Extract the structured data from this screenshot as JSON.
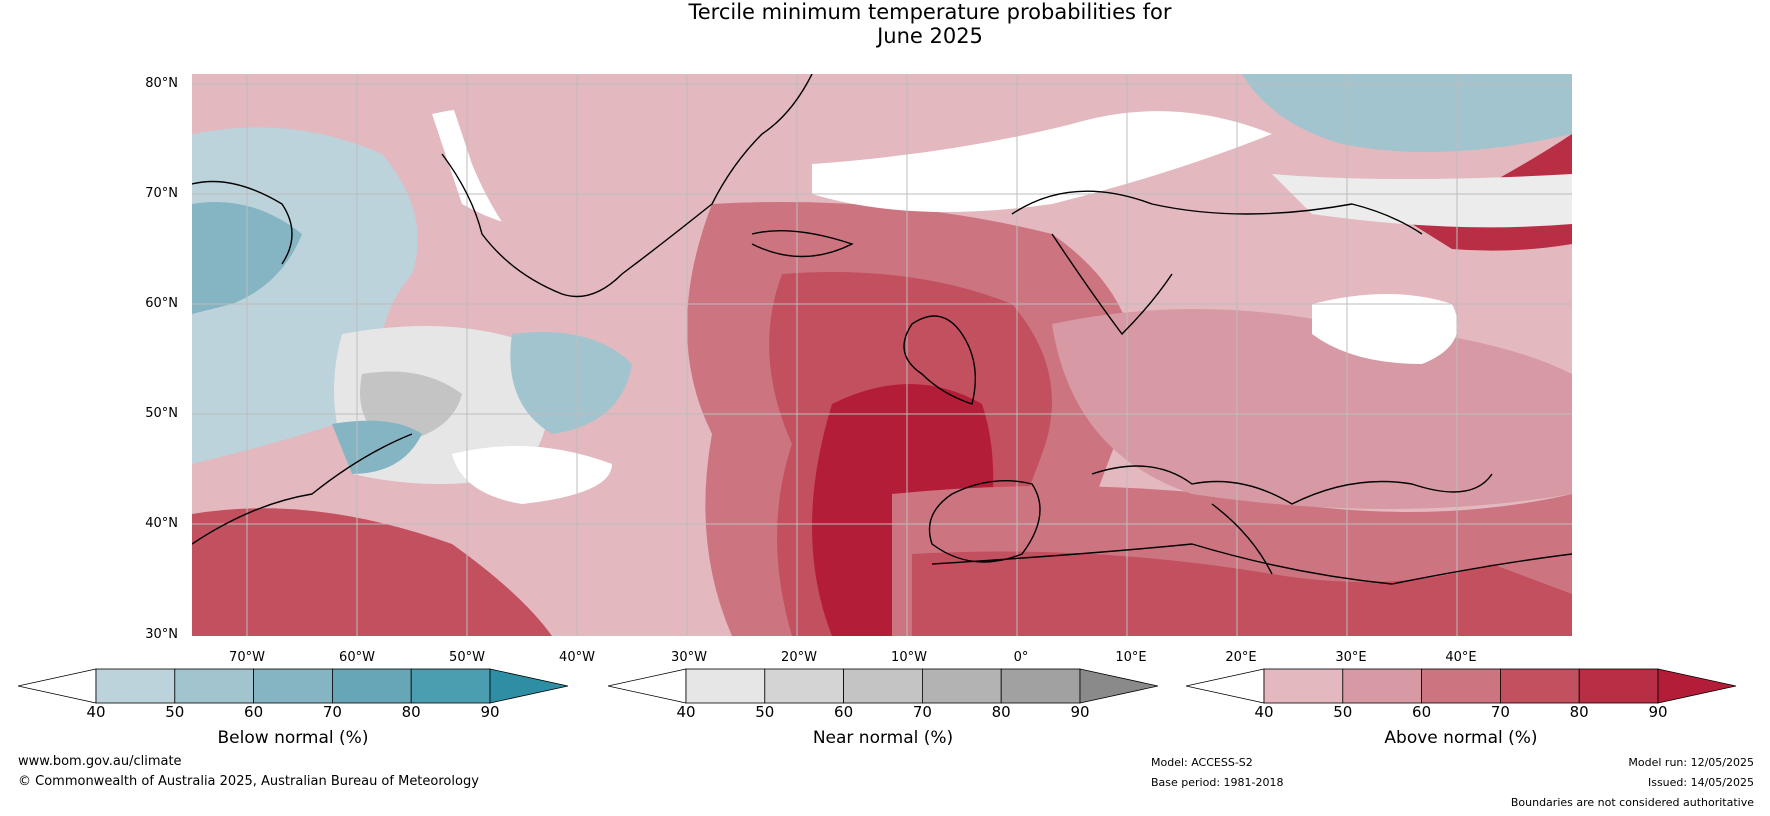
{
  "title_line1": "Tercile minimum temperature probabilities for",
  "title_line2": "June 2025",
  "lat_labels": [
    "80°N",
    "70°N",
    "60°N",
    "50°N",
    "40°N",
    "30°N"
  ],
  "lon_labels": [
    "70°W",
    "60°W",
    "50°W",
    "40°W",
    "30°W",
    "20°W",
    "10°W",
    "0°",
    "10°E",
    "20°E",
    "30°E",
    "40°E"
  ],
  "colorbars": [
    {
      "label": "Below normal (%)",
      "ticks": [
        "40",
        "50",
        "60",
        "70",
        "80",
        "90"
      ],
      "colors": [
        "#ffffff",
        "#bcd3db",
        "#a2c4cf",
        "#85b4c3",
        "#66a6b6",
        "#4b9db0",
        "#2d8ea4"
      ]
    },
    {
      "label": "Near normal (%)",
      "ticks": [
        "40",
        "50",
        "60",
        "70",
        "80",
        "90"
      ],
      "colors": [
        "#ffffff",
        "#e6e6e6",
        "#d4d4d4",
        "#c4c4c4",
        "#b3b3b3",
        "#a1a1a1",
        "#8a8a8a"
      ]
    },
    {
      "label": "Above normal (%)",
      "ticks": [
        "40",
        "50",
        "60",
        "70",
        "80",
        "90"
      ],
      "colors": [
        "#ffffff",
        "#e3b8bf",
        "#d79aa4",
        "#cc7581",
        "#c2505f",
        "#b82e44",
        "#b41d38"
      ]
    }
  ],
  "footer": {
    "website": "www.bom.gov.au/climate",
    "copyright": "© Commonwealth of Australia 2025, Australian Bureau of Meteorology",
    "model": "Model: ACCESS-S2",
    "base_period": "Base period: 1981-2018",
    "model_run": "Model run: 12/05/2025",
    "issued": "Issued: 14/05/2025",
    "disclaimer": "Boundaries are not considered authoritative"
  }
}
